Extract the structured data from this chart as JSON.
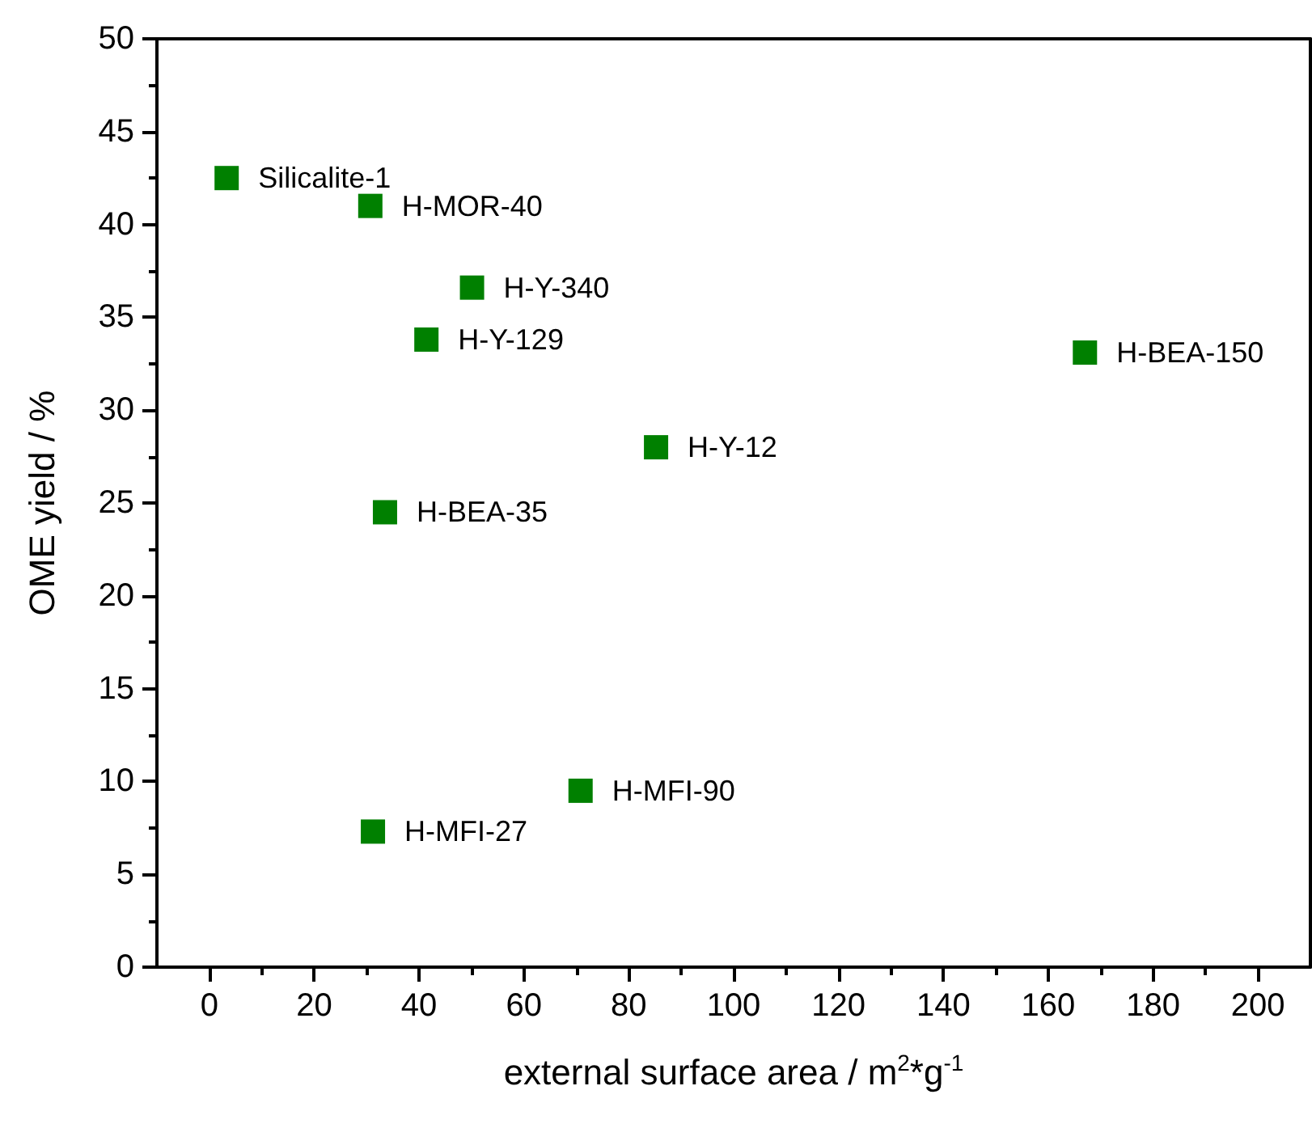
{
  "chart_data": {
    "type": "scatter",
    "xlabel": "external surface area / m$^{2}$*g$^{-1}$",
    "ylabel": "OME yield / %",
    "x": [
      3.3,
      30.7,
      50.1,
      41.4,
      85.2,
      33.5,
      70.8,
      31.2,
      167
    ],
    "values": [
      42.5,
      41.0,
      36.6,
      33.8,
      28.0,
      24.5,
      9.5,
      7.3,
      33.1
    ],
    "value_labels": [
      "Silicalite-1",
      "H-MOR-40",
      "H-Y-340",
      "H-Y-129",
      "H-Y-12",
      "H-BEA-35",
      "H-MFI-90",
      "H-MFI-27",
      "H-BEA-150"
    ],
    "color": "#008000",
    "marker": "square",
    "xlim": [
      -10,
      210
    ],
    "xticks": [
      0,
      20,
      40,
      60,
      80,
      100,
      120,
      140,
      160,
      180,
      200
    ],
    "ylim": [
      0,
      50
    ],
    "yticks": [
      0,
      5,
      10,
      15,
      20,
      25,
      30,
      35,
      40,
      45,
      50
    ],
    "grid": false
  }
}
